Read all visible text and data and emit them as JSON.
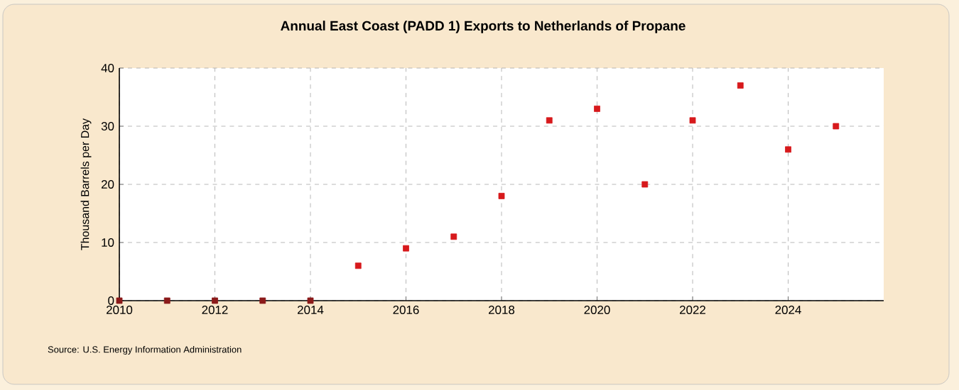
{
  "chart_data": {
    "type": "scatter",
    "title": "Annual East Coast (PADD 1) Exports to Netherlands of Propane",
    "ylabel": "Thousand Barrels per Day",
    "x": [
      2010,
      2011,
      2012,
      2013,
      2014,
      2015,
      2016,
      2017,
      2018,
      2019,
      2020,
      2021,
      2022,
      2023,
      2024,
      2025
    ],
    "values": [
      0,
      0,
      0,
      0,
      0,
      6,
      9,
      11,
      18,
      31,
      33,
      20,
      31,
      37,
      26,
      30
    ],
    "colors": [
      "#8b1a1a",
      "#8b1a1a",
      "#8b1a1a",
      "#8b1a1a",
      "#8b1a1a",
      "#d7191c",
      "#d7191c",
      "#d7191c",
      "#d7191c",
      "#d7191c",
      "#d7191c",
      "#d7191c",
      "#d7191c",
      "#d7191c",
      "#d7191c",
      "#d7191c"
    ],
    "xlim": [
      2010,
      2026
    ],
    "xticks": [
      2010,
      2012,
      2014,
      2016,
      2018,
      2020,
      2022,
      2024
    ],
    "ylim": [
      0,
      40
    ],
    "yticks": [
      0,
      10,
      20,
      30,
      40
    ],
    "grid": true,
    "marker": "square",
    "annotations": [
      "Source: U.S. Energy Information Administration"
    ]
  }
}
